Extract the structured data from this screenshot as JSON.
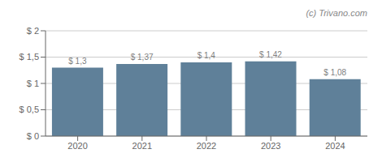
{
  "chart_data": {
    "type": "bar",
    "categories": [
      "2020",
      "2021",
      "2022",
      "2023",
      "2024"
    ],
    "values": [
      1.3,
      1.37,
      1.4,
      1.42,
      1.08
    ],
    "value_labels": [
      "$ 1,3",
      "$ 1,37",
      "$ 1,4",
      "$ 1,42",
      "$ 1,08"
    ],
    "data_labels": true,
    "color": "#5f8099",
    "ylim": [
      0,
      2.0
    ],
    "yticks": [
      {
        "value": 0,
        "label": "$ 0"
      },
      {
        "value": 0.5,
        "label": "$ 0,5"
      },
      {
        "value": 1.0,
        "label": "$ 1"
      },
      {
        "value": 1.5,
        "label": "$ 1,5"
      },
      {
        "value": 2.0,
        "label": "$ 2"
      }
    ],
    "grid": true,
    "annotations": [
      "(c) Trivano.com"
    ]
  }
}
